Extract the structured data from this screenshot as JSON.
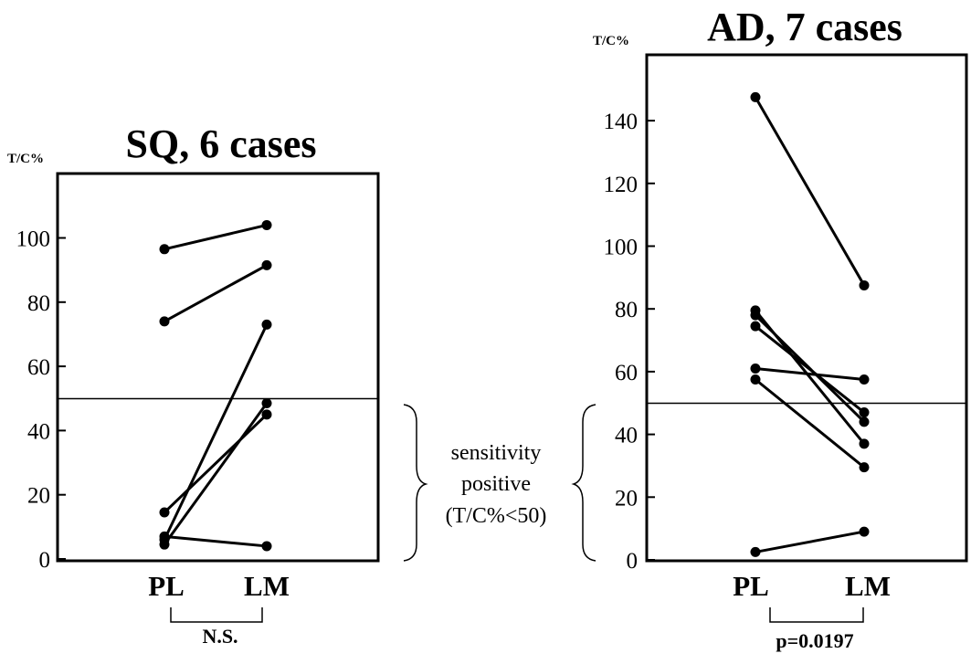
{
  "chart_data": [
    {
      "type": "line",
      "title": "SQ, 6 cases",
      "ylabel": "T/C%",
      "categories": [
        "PL",
        "LM"
      ],
      "yticks": [
        "0",
        "20",
        "40",
        "60",
        "80",
        "100"
      ],
      "ylim": [
        0,
        120
      ],
      "threshold": 50,
      "comparison": "N.S.",
      "cases": [
        [
          96.5,
          104
        ],
        [
          74,
          91.5
        ],
        [
          14.5,
          45
        ],
        [
          7,
          4
        ],
        [
          6,
          73
        ],
        [
          4.5,
          48.5
        ]
      ]
    },
    {
      "type": "line",
      "title": "AD, 7 cases",
      "ylabel": "T/C%",
      "categories": [
        "PL",
        "LM"
      ],
      "yticks": [
        "0",
        "20",
        "40",
        "60",
        "80",
        "100",
        "120",
        "140"
      ],
      "ylim": [
        0,
        160
      ],
      "threshold": 50,
      "comparison": "p=0.0197",
      "cases": [
        [
          147.5,
          87.5
        ],
        [
          79.5,
          37
        ],
        [
          78,
          44
        ],
        [
          74.5,
          47
        ],
        [
          61,
          57.5
        ],
        [
          57.5,
          29.5
        ],
        [
          2.5,
          9
        ]
      ]
    }
  ],
  "annotation": {
    "lines": [
      "sensitivity",
      "positive",
      "(T/C%<50)"
    ]
  }
}
